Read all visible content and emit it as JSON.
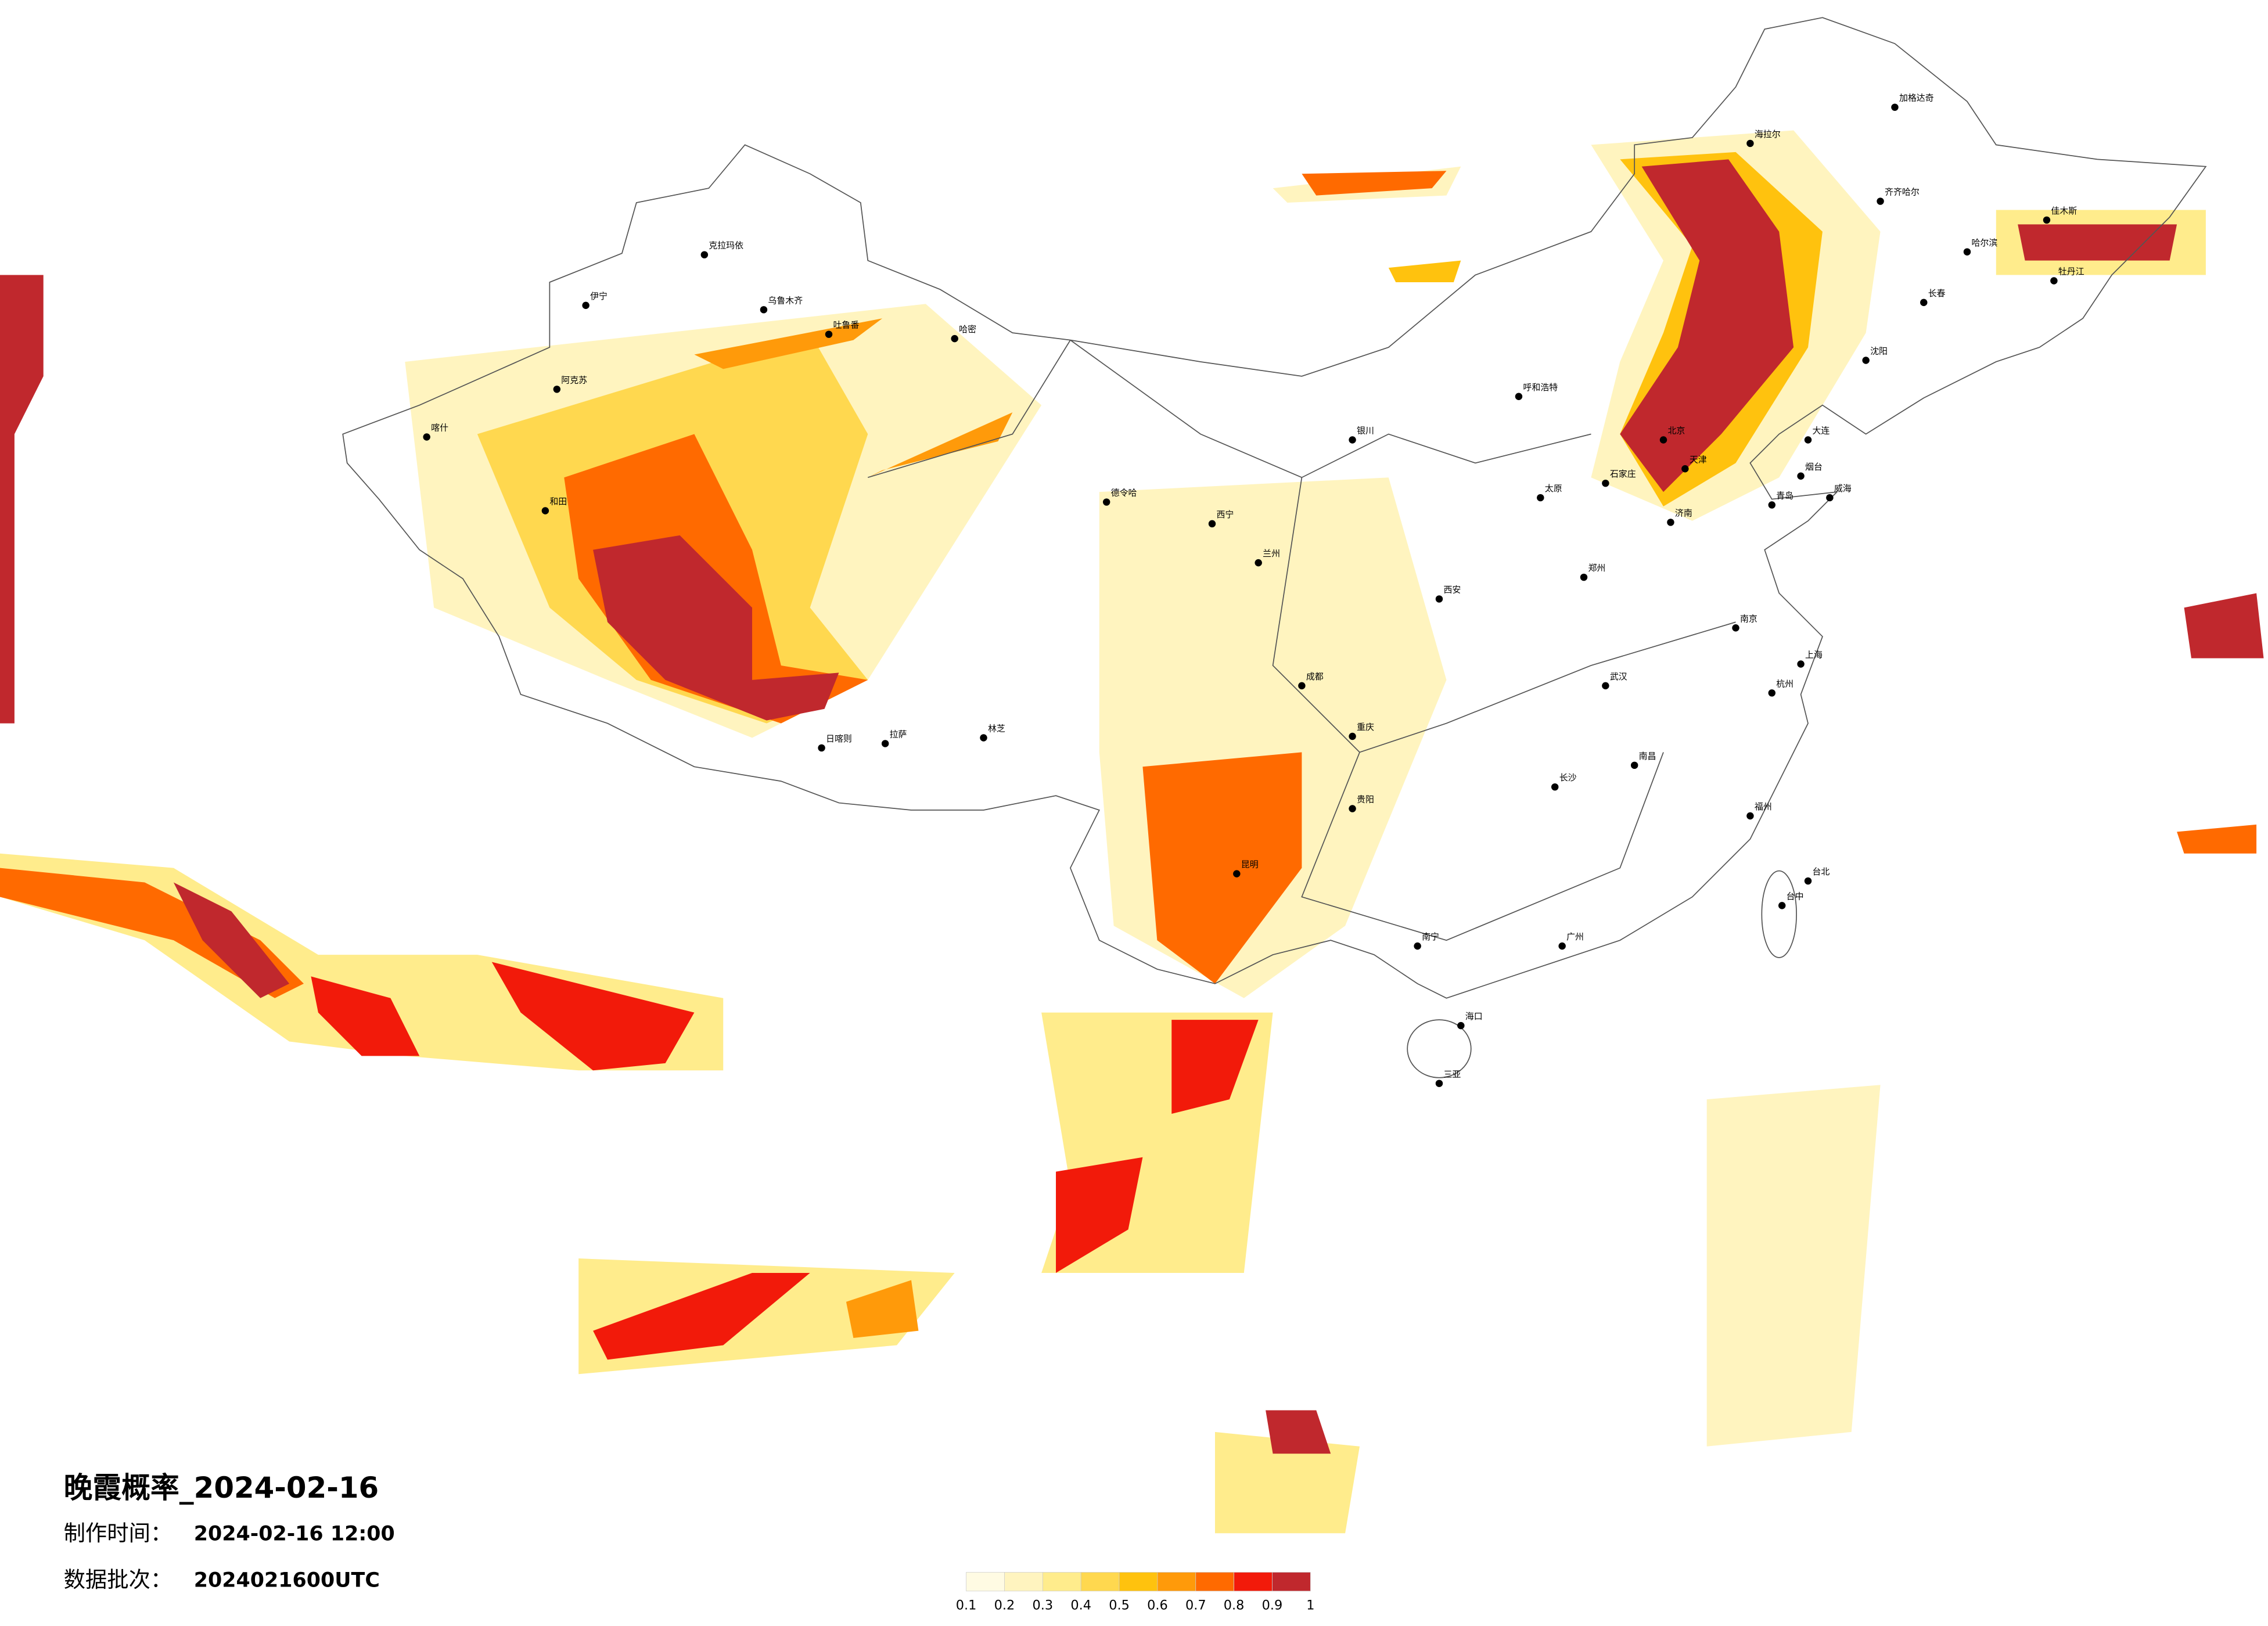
{
  "title": "晚霞概率_2024-02-16",
  "production_label": "制作时间：",
  "production_time": "2024-02-16 12:00",
  "batch_label": "数据批次：",
  "batch": "2024021600UTC",
  "colorbar": {
    "ticks": [
      0.1,
      0.2,
      0.3,
      0.4,
      0.5,
      0.6,
      0.7,
      0.8,
      0.9,
      1
    ],
    "colors": [
      "#fffbe3",
      "#fff4bf",
      "#ffec8c",
      "#ffd84f",
      "#ffc20e",
      "#ff9a0a",
      "#ff6a00",
      "#f21a0a",
      "#c0282d"
    ]
  },
  "cities": [
    "克拉玛依",
    "伊宁",
    "乌鲁木齐",
    "吐鲁番",
    "哈密",
    "阿克苏",
    "喀什",
    "和田",
    "德令哈",
    "拉萨",
    "日喀则",
    "林芝",
    "西宁",
    "兰州",
    "银川",
    "呼和浩特",
    "北京",
    "天津",
    "石家庄",
    "太原",
    "济南",
    "西安",
    "郑州",
    "武汉",
    "成都",
    "重庆",
    "长沙",
    "南昌",
    "南京",
    "上海",
    "杭州",
    "福州",
    "广州",
    "南宁",
    "海口",
    "三亚",
    "台北",
    "台中",
    "昆明",
    "贵阳",
    "哈尔滨",
    "长春",
    "沈阳",
    "大连",
    "齐齐哈尔",
    "海拉尔",
    "加格达奇",
    "佳木斯",
    "牡丹江",
    "青岛",
    "烟台",
    "威海"
  ]
}
